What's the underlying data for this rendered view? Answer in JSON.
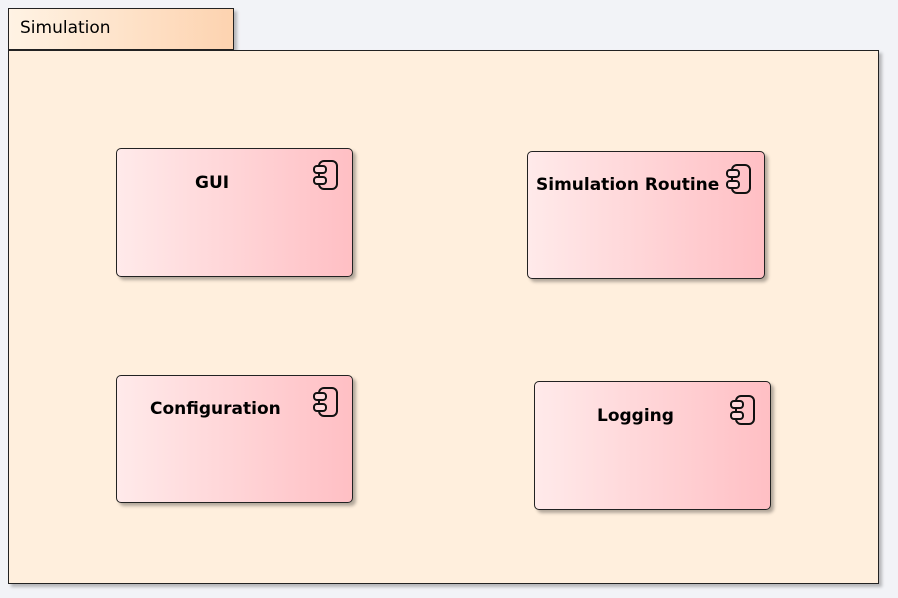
{
  "package": {
    "name": "Simulation"
  },
  "components": [
    {
      "name": "GUI",
      "icon": "component-icon"
    },
    {
      "name": "Simulation Routine",
      "icon": "component-icon"
    },
    {
      "name": "Configuration",
      "icon": "component-icon"
    },
    {
      "name": "Logging",
      "icon": "component-icon"
    }
  ]
}
